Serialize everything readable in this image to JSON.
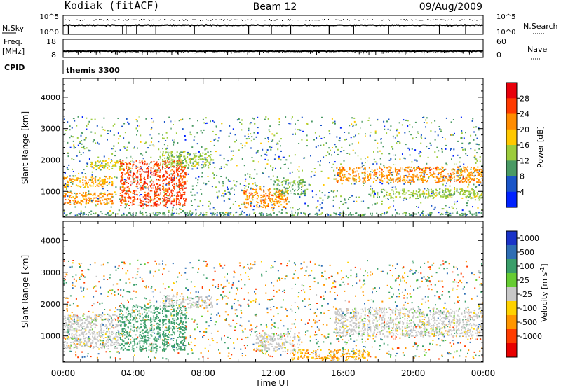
{
  "header": {
    "station": "Kodiak (fitACF)",
    "beam": "Beam 12",
    "date": "09/Aug/2009"
  },
  "status_panels": {
    "nsky_label": "N.Sky",
    "nsky_ticks": [
      "10^5",
      "10^0"
    ],
    "nsearch_label": "N.Search",
    "nsearch_ticks": [
      "10^5",
      "10^0"
    ],
    "freq_label": "Freq.",
    "freq_unit": "[MHz]",
    "freq_ticks": [
      "18",
      "8"
    ],
    "nave_label": "Nave",
    "nave_ticks": [
      "60",
      "0"
    ],
    "cpid_label": "CPID",
    "cpid_value": "themis 3300"
  },
  "chart_data": [
    {
      "type": "heatmap",
      "quantity": "Power",
      "ylabel": "Slant Range [km]",
      "ylim": [
        180,
        4600
      ],
      "yticks": [
        1000,
        2000,
        3000,
        4000
      ],
      "xlim": [
        0,
        24
      ],
      "colorbar": {
        "label": "Power [dB]",
        "ticks": [
          "28",
          "24",
          "20",
          "16",
          "12",
          "8",
          "4"
        ],
        "colors": [
          "#e8000b",
          "#ff3a00",
          "#ff8c00",
          "#ffc800",
          "#9ccc3c",
          "#4a9a64",
          "#1a55c8",
          "#0022ff"
        ]
      },
      "echo_regions": [
        {
          "t": [
            0.0,
            24.0
          ],
          "r": [
            250,
            360
          ],
          "power": 10,
          "note": "near-range ground scatter"
        },
        {
          "t": [
            0.0,
            2.8
          ],
          "r": [
            1150,
            1500
          ],
          "power": 20
        },
        {
          "t": [
            0.0,
            2.8
          ],
          "r": [
            600,
            1000
          ],
          "power": 22
        },
        {
          "t": [
            1.5,
            4.0
          ],
          "r": [
            1700,
            2000
          ],
          "power": 16
        },
        {
          "t": [
            3.2,
            7.0
          ],
          "r": [
            550,
            2000
          ],
          "power": 26
        },
        {
          "t": [
            5.5,
            8.5
          ],
          "r": [
            1800,
            2300
          ],
          "power": 14
        },
        {
          "t": [
            10.3,
            12.8
          ],
          "r": [
            500,
            1100
          ],
          "power": 22
        },
        {
          "t": [
            12.0,
            13.8
          ],
          "r": [
            900,
            1400
          ],
          "power": 12
        },
        {
          "t": [
            15.5,
            24.0
          ],
          "r": [
            1300,
            1800
          ],
          "power": 22
        },
        {
          "t": [
            17.5,
            24.0
          ],
          "r": [
            800,
            1100
          ],
          "power": 14
        }
      ]
    },
    {
      "type": "heatmap",
      "quantity": "Velocity",
      "ylabel": "Slant Range [km]",
      "xlabel": "Time UT",
      "ylim": [
        180,
        4600
      ],
      "yticks": [
        1000,
        2000,
        3000,
        4000
      ],
      "xlim": [
        0,
        24
      ],
      "xticks": [
        "00:00",
        "04:00",
        "08:00",
        "12:00",
        "16:00",
        "20:00",
        "00:00"
      ],
      "colorbar": {
        "label": "Velocity [m s",
        "label_superscript": "-1",
        "label_close": "]",
        "ticks": [
          "1000",
          "500",
          "100",
          "25",
          "-25",
          "-100",
          "-500",
          "-1000"
        ],
        "colors": [
          "#1a33c8",
          "#2e6eb4",
          "#3a9e6a",
          "#66cc33",
          "#c8c8c8",
          "#ffd200",
          "#ff9600",
          "#ff3c00",
          "#e80000"
        ]
      },
      "echo_regions": [
        {
          "t": [
            0.0,
            3.2
          ],
          "r": [
            600,
            1700
          ],
          "velocity": 0,
          "note": "ground scatter (grey)"
        },
        {
          "t": [
            3.2,
            7.0
          ],
          "r": [
            550,
            2000
          ],
          "velocity": 300
        },
        {
          "t": [
            5.5,
            8.5
          ],
          "r": [
            1900,
            2300
          ],
          "velocity": 0
        },
        {
          "t": [
            11.0,
            13.5
          ],
          "r": [
            500,
            1100
          ],
          "velocity": 0
        },
        {
          "t": [
            13.0,
            17.5
          ],
          "r": [
            250,
            600
          ],
          "velocity": -100,
          "note": "near-range (yellow)"
        },
        {
          "t": [
            15.5,
            24.0
          ],
          "r": [
            1000,
            1900
          ],
          "velocity": 0,
          "note": "ground scatter (grey)"
        }
      ]
    }
  ]
}
